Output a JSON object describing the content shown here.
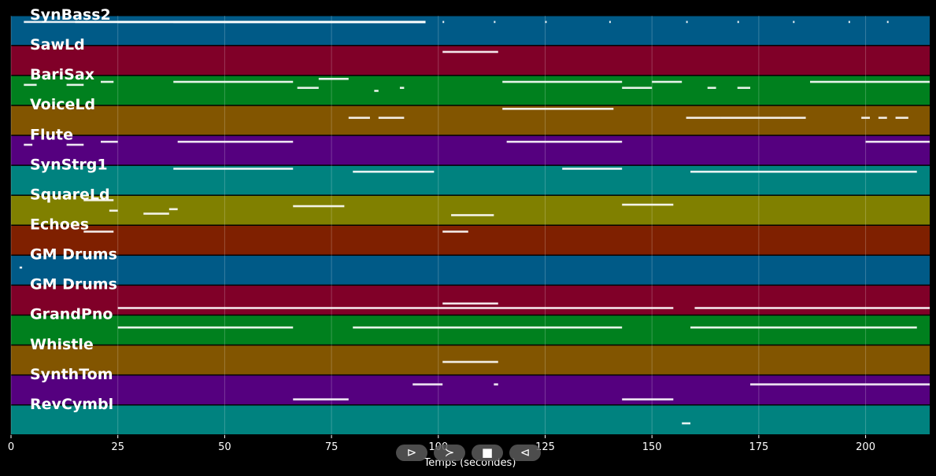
{
  "chart_data": {
    "type": "piano-roll",
    "xlabel": "Temps (secondes)",
    "xlim": [
      0,
      215
    ],
    "xticks": [
      0,
      25,
      50,
      75,
      100,
      125,
      150,
      175,
      200
    ],
    "grid": true,
    "tracks": [
      {
        "name": "SynBass2",
        "color": "#005a87",
        "notes": [
          [
            3,
            97,
            0.9
          ],
          [
            15,
            97,
            0.9
          ],
          [
            25,
            97,
            0.9
          ],
          [
            38,
            97,
            0.9
          ],
          [
            50,
            97,
            0.9
          ],
          [
            62,
            97,
            0.9
          ],
          [
            65,
            97,
            0.9
          ],
          [
            75,
            97,
            0.9
          ],
          [
            85,
            97,
            0.9
          ],
          [
            95,
            97,
            0.9
          ],
          [
            101,
            97,
            0.9
          ],
          [
            113,
            97,
            0.9
          ],
          [
            125,
            97,
            0.9
          ],
          [
            140,
            97,
            0.9
          ],
          [
            158,
            97,
            0.9
          ],
          [
            170,
            97,
            0.9
          ],
          [
            183,
            97,
            0.9
          ],
          [
            196,
            97,
            0.9
          ],
          [
            205,
            97,
            0.9
          ]
        ]
      },
      {
        "name": "SawLd",
        "color": "#800028",
        "notes": [
          [
            101,
            114,
            0.9
          ]
        ]
      },
      {
        "name": "BariSax",
        "color": "#00801e",
        "notes": [
          [
            3,
            6,
            0.8
          ],
          [
            13,
            17,
            0.8
          ],
          [
            21,
            24,
            0.9
          ],
          [
            38,
            66,
            0.9
          ],
          [
            67,
            72,
            0.7
          ],
          [
            72,
            79,
            1.0
          ],
          [
            85,
            86,
            0.6
          ],
          [
            91,
            92,
            0.7
          ],
          [
            115,
            143,
            0.9
          ],
          [
            143,
            150,
            0.7
          ],
          [
            150,
            157,
            0.9
          ],
          [
            163,
            165,
            0.7
          ],
          [
            170,
            173,
            0.7
          ],
          [
            187,
            215,
            0.9
          ]
        ]
      },
      {
        "name": "VoiceLd",
        "color": "#825500",
        "notes": [
          [
            79,
            84,
            0.7
          ],
          [
            86,
            92,
            0.7
          ],
          [
            115,
            141,
            1.0
          ],
          [
            158,
            166,
            0.7
          ],
          [
            166,
            180,
            0.7
          ],
          [
            180,
            186,
            0.7
          ],
          [
            199,
            201,
            0.7
          ],
          [
            203,
            205,
            0.7
          ],
          [
            207,
            210,
            0.7
          ]
        ]
      },
      {
        "name": "Flute",
        "color": "#55007f",
        "notes": [
          [
            3,
            5,
            0.8
          ],
          [
            13,
            17,
            0.8
          ],
          [
            21,
            25,
            0.9
          ],
          [
            39,
            66,
            0.9
          ],
          [
            116,
            143,
            0.9
          ],
          [
            200,
            215,
            0.9
          ]
        ]
      },
      {
        "name": "SynStrg1",
        "color": "#00827f",
        "notes": [
          [
            38,
            66,
            1.0
          ],
          [
            80,
            99,
            0.9
          ],
          [
            129,
            143,
            1.0
          ],
          [
            159,
            212,
            0.9
          ]
        ]
      },
      {
        "name": "SquareLd",
        "color": "#808000",
        "notes": [
          [
            17,
            24,
            0.95
          ],
          [
            23,
            25,
            0.6
          ],
          [
            31,
            37,
            0.5
          ],
          [
            37,
            39,
            0.65
          ],
          [
            66,
            78,
            0.75
          ],
          [
            103,
            113,
            0.45
          ],
          [
            143,
            155,
            0.8
          ]
        ]
      },
      {
        "name": "Echoes",
        "color": "#7f2000",
        "notes": [
          [
            17,
            24,
            0.9
          ],
          [
            101,
            107,
            0.9
          ]
        ]
      },
      {
        "name": "GM Drums",
        "color": "#005a87",
        "notes": [
          [
            2,
            2.6,
            0.7
          ]
        ]
      },
      {
        "name": "GM Drums",
        "color": "#800028",
        "notes": [
          [
            25,
            155,
            0.35
          ],
          [
            101,
            114,
            0.5
          ],
          [
            160,
            215,
            0.35
          ]
        ]
      },
      {
        "name": "GrandPno",
        "color": "#00801e",
        "notes": [
          [
            25,
            66,
            0.7
          ],
          [
            80,
            143,
            0.7
          ],
          [
            159,
            212,
            0.7
          ]
        ]
      },
      {
        "name": "Whistle",
        "color": "#825500",
        "notes": [
          [
            101,
            114,
            0.55
          ]
        ]
      },
      {
        "name": "SynthTom",
        "color": "#55007f",
        "notes": [
          [
            66,
            79,
            0.3
          ],
          [
            94,
            101,
            0.8
          ],
          [
            113,
            114,
            0.8
          ],
          [
            143,
            155,
            0.3
          ],
          [
            173,
            215,
            0.8
          ]
        ]
      },
      {
        "name": "RevCymbl",
        "color": "#00827f",
        "notes": [
          [
            157,
            159,
            0.5
          ]
        ]
      }
    ]
  },
  "controls": {
    "play_glyph": "⊳",
    "forward_glyph": "≻",
    "stop_glyph": "■",
    "back_glyph": "⊲"
  }
}
